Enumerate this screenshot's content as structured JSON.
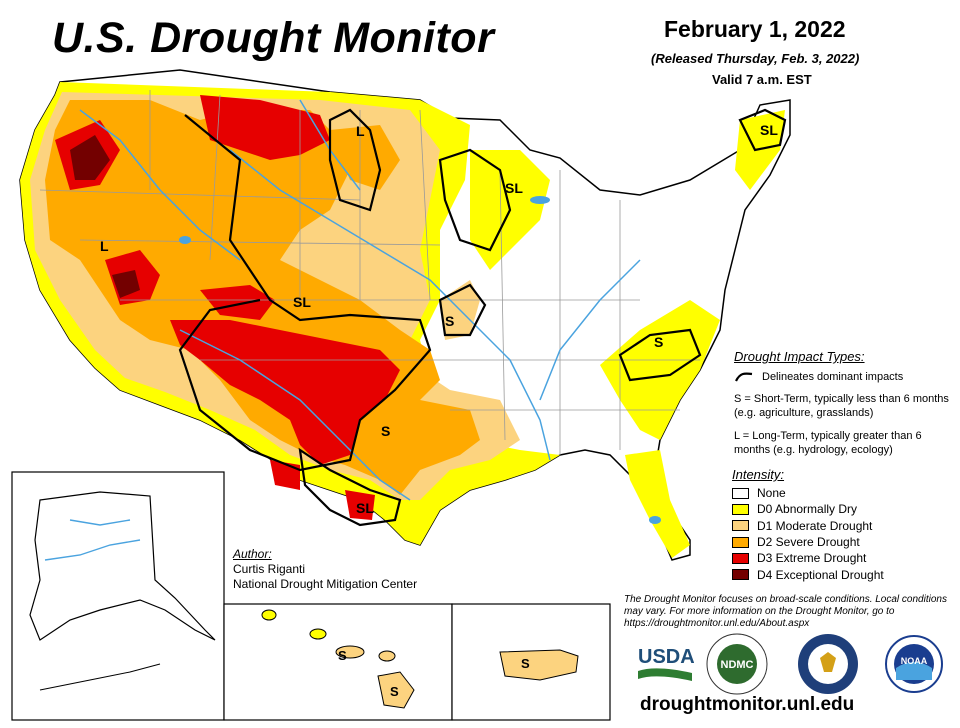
{
  "header": {
    "title": "U.S. Drought Monitor",
    "date": "February 1, 2022",
    "released": "(Released Thursday, Feb. 3, 2022)",
    "valid": "Valid 7 a.m. EST"
  },
  "map_labels": {
    "l_west": "L",
    "l_north": "L",
    "sl_mid": "SL",
    "sl_great_lakes": "SL",
    "sl_ne": "SL",
    "s_kansas": "S",
    "s_texas": "S",
    "s_carolina": "S",
    "sl_texas": "SL",
    "s_hawaii_1": "S",
    "s_hawaii_2": "S",
    "s_puerto_rico": "S"
  },
  "impact_types": {
    "title": "Drought Impact Types:",
    "delineates": "Delineates dominant impacts",
    "short_term": "S = Short-Term, typically less than 6 months (e.g. agriculture, grasslands)",
    "long_term": "L = Long-Term, typically greater than 6 months (e.g. hydrology, ecology)"
  },
  "intensity": {
    "title": "Intensity:",
    "items": [
      {
        "label": "None",
        "color": "#ffffff"
      },
      {
        "label": "D0 Abnormally Dry",
        "color": "#ffff00"
      },
      {
        "label": "D1 Moderate Drought",
        "color": "#fcd37f"
      },
      {
        "label": "D2 Severe Drought",
        "color": "#ffaa00"
      },
      {
        "label": "D3 Extreme Drought",
        "color": "#e60000"
      },
      {
        "label": "D4 Exceptional Drought",
        "color": "#730000"
      }
    ]
  },
  "author": {
    "label": "Author:",
    "name": "Curtis Riganti",
    "org": "National Drought Mitigation Center"
  },
  "note": "The Drought Monitor focuses on broad-scale conditions. Local conditions may vary. For more information on the Drought Monitor, go to https://droughtmonitor.unl.edu/About.aspx",
  "logos": {
    "usda": "USDA",
    "ndmc": "NDMC",
    "noaa": "NOAA"
  },
  "url": "droughtmonitor.unl.edu",
  "colors": {
    "water": "#4aa3df",
    "boundary": "#000000",
    "state_line": "#9a9a9a"
  }
}
